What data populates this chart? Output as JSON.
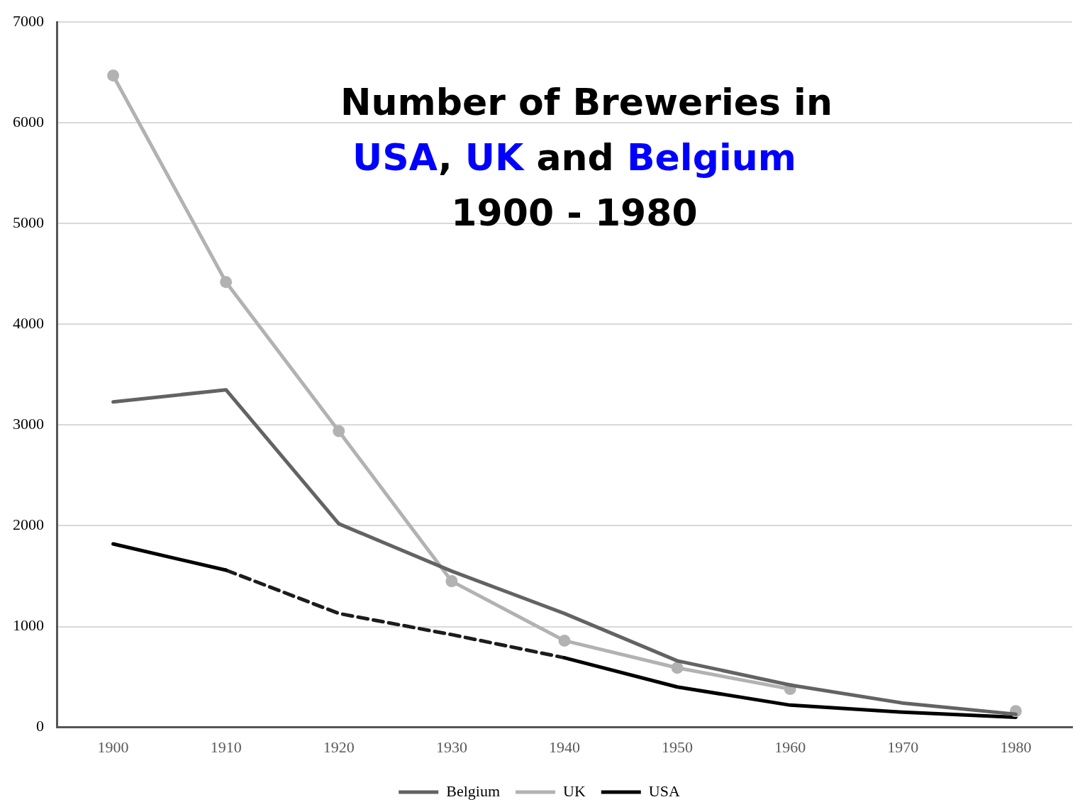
{
  "chart_data": {
    "type": "line",
    "title": "Number of Breweries in\nUSA, UK and Belgium\n1900 - 1980",
    "categories": [
      "1900",
      "1910",
      "1920",
      "1930",
      "1940",
      "1950",
      "1960",
      "1970",
      "1980"
    ],
    "series": [
      {
        "name": "Belgium",
        "color": "#636363",
        "values": [
          3230,
          3350,
          2020,
          1550,
          1130,
          660,
          420,
          240,
          130
        ]
      },
      {
        "name": "UK",
        "color": "#b2b2b2",
        "marker": "circle",
        "values": [
          6470,
          4420,
          2940,
          1450,
          860,
          590,
          380,
          null,
          160
        ]
      },
      {
        "name": "USA",
        "color": "#000000",
        "values": [
          1820,
          1560,
          null,
          null,
          690,
          400,
          220,
          150,
          100
        ]
      },
      {
        "color": "#1c1c1c",
        "line_style": "dashed",
        "values": [
          null,
          1560,
          1130,
          920,
          690,
          null,
          null,
          null,
          null
        ]
      }
    ],
    "ylim": [
      0,
      7000
    ],
    "yticks": [
      0,
      1000,
      2000,
      3000,
      4000,
      5000,
      6000,
      7000
    ],
    "grid": "y",
    "legend": "bottom",
    "marker": "none",
    "line_style": "solid"
  }
}
